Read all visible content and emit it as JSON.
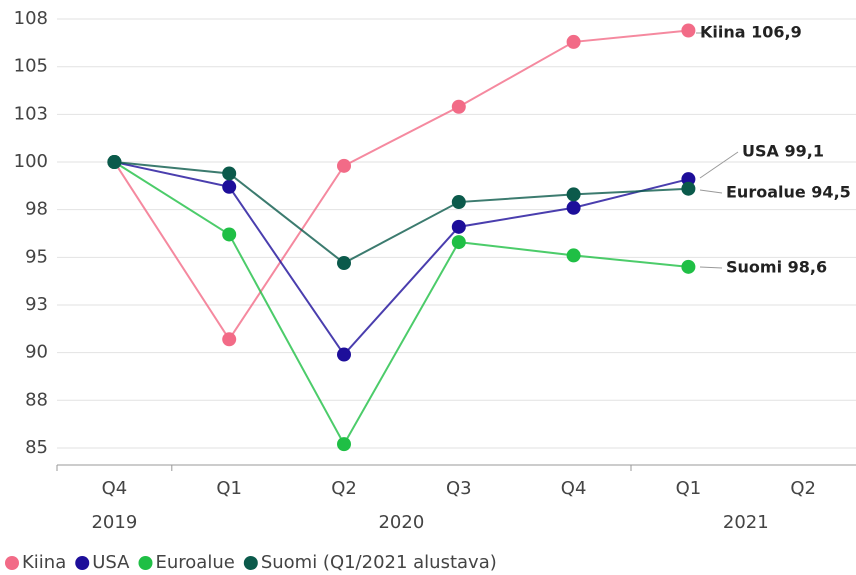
{
  "chart_data": {
    "type": "line",
    "categories": [
      "Q4",
      "Q1",
      "Q2",
      "Q3",
      "Q4",
      "Q1",
      "Q2"
    ],
    "year_groups": [
      {
        "label": "2019",
        "start": 0,
        "end": 0
      },
      {
        "label": "2020",
        "start": 1,
        "end": 4
      },
      {
        "label": "2021",
        "start": 5,
        "end": 6
      }
    ],
    "series": [
      {
        "name": "Kiina",
        "color": "#f26b87",
        "values": [
          100,
          90.7,
          99.8,
          102.9,
          106.3,
          106.9,
          null
        ],
        "end_label": "Kiina 106,9"
      },
      {
        "name": "USA",
        "color": "#1d0e9a",
        "values": [
          100,
          98.7,
          89.9,
          96.6,
          97.6,
          99.1,
          null
        ],
        "end_label": "USA 99,1"
      },
      {
        "name": "Euroalue",
        "color": "#1fbf45",
        "values": [
          100,
          96.2,
          85.2,
          95.8,
          95.1,
          94.5,
          null
        ],
        "end_label": "Euroalue 94,5"
      },
      {
        "name": "Suomi (Q1/2021 alustava)",
        "color": "#0b5a4b",
        "values": [
          100,
          99.4,
          94.7,
          97.9,
          98.3,
          98.6,
          null
        ],
        "end_label": "Suomi 98,6"
      }
    ],
    "ylim": [
      84,
      108.5
    ],
    "yticks": [
      85,
      {
        "value": 87.5,
        "label": "88"
      },
      90,
      {
        "value": 92.5,
        "label": "93"
      },
      95,
      {
        "value": 97.5,
        "label": "98"
      },
      100,
      {
        "value": 102.5,
        "label": "103"
      },
      105,
      {
        "value": 107.5,
        "label": "108"
      }
    ],
    "grid": true
  }
}
